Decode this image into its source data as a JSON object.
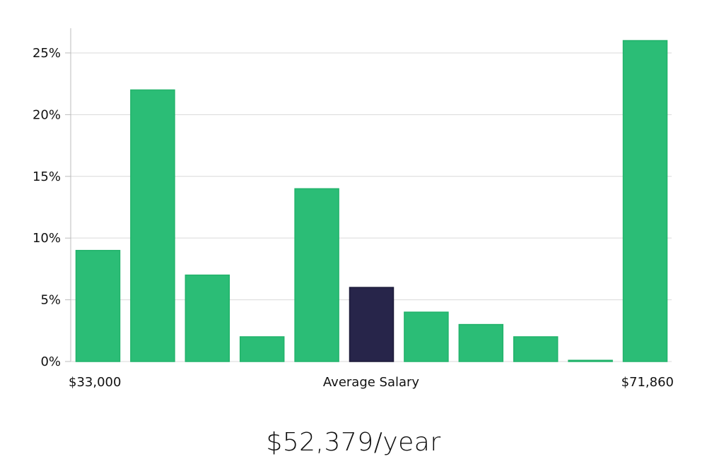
{
  "chart_data": {
    "type": "bar",
    "categories": [
      "1",
      "2",
      "3",
      "4",
      "5",
      "6",
      "7",
      "8",
      "9",
      "10",
      "11"
    ],
    "values": [
      9,
      22,
      7,
      2,
      14,
      6,
      4,
      3,
      2,
      0.1,
      26
    ],
    "highlight_index": 5,
    "ylim": [
      0,
      27
    ],
    "yticks": [
      0,
      5,
      10,
      15,
      20,
      25
    ],
    "ytick_labels": [
      "0%",
      "5%",
      "10%",
      "15%",
      "20%",
      "25%"
    ],
    "grid": true,
    "x_start_label": "$33,000",
    "x_center_label": "Average Salary",
    "x_end_label": "$71,860",
    "colors": {
      "bar": "#2bbd76",
      "bar_edge": "#22b36b",
      "highlight": "#27254a",
      "grid": "#d9d9d9",
      "axis": "#bbbbbb"
    }
  },
  "salary_display": "$52,379/year"
}
